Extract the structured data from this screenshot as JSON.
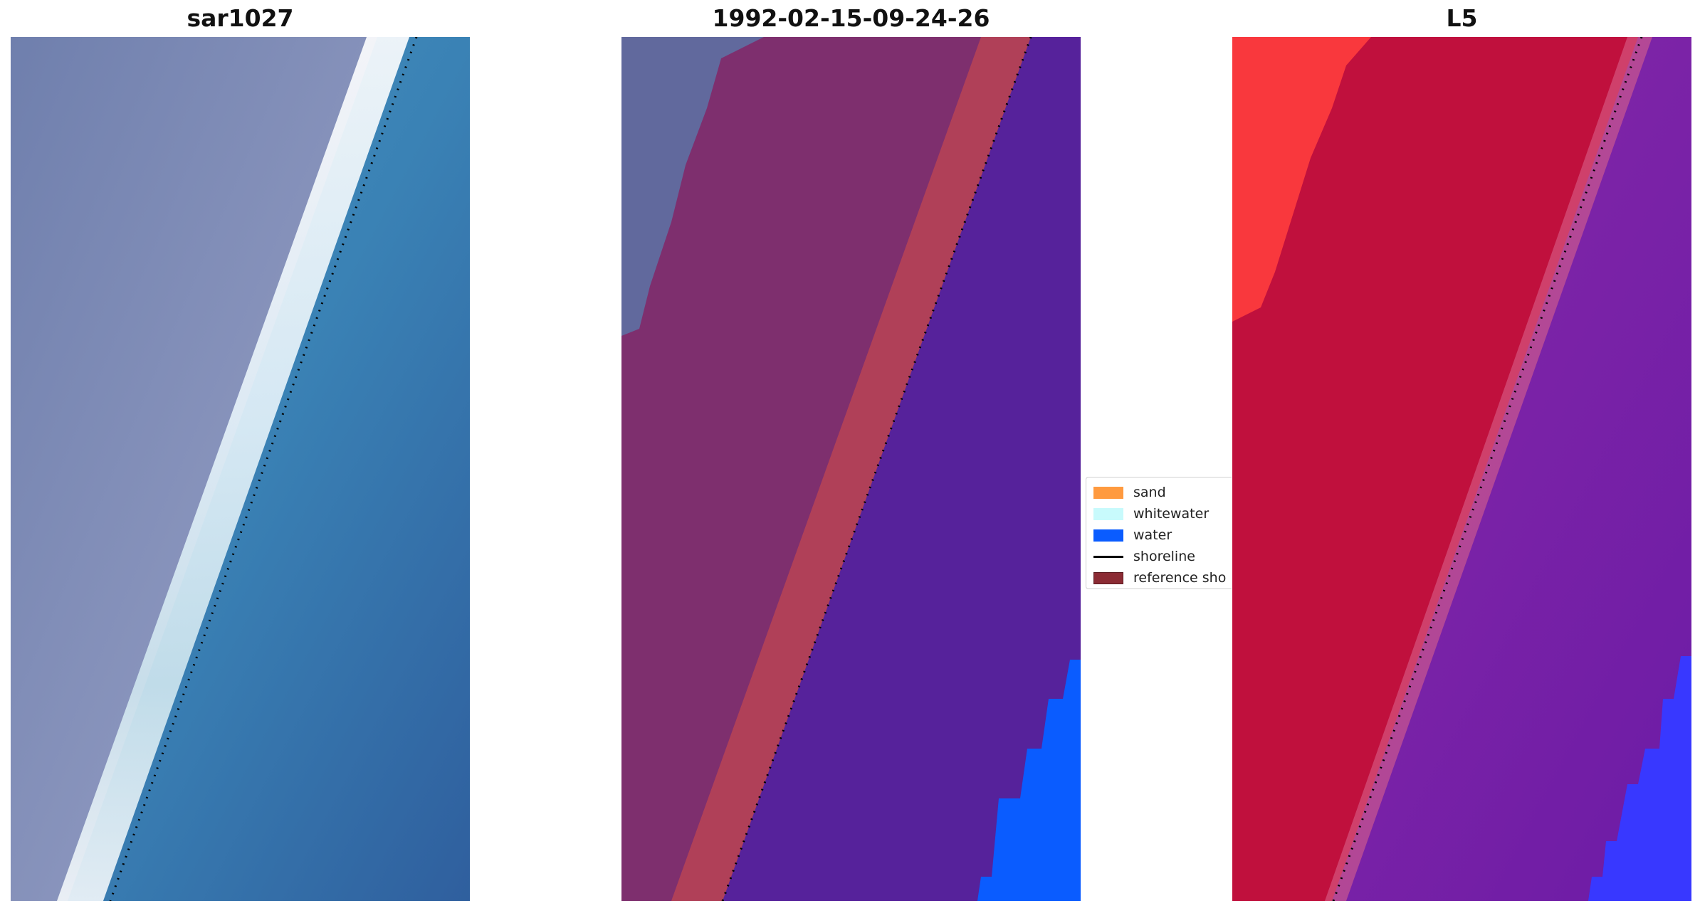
{
  "panels": [
    {
      "id": "sar",
      "title": "sar1027"
    },
    {
      "id": "classified",
      "title": "1992-02-15-09-24-26"
    },
    {
      "id": "l5",
      "title": "L5"
    }
  ],
  "legend": {
    "items": [
      {
        "label": "sand",
        "color": "#ff9a3f",
        "kind": "patch"
      },
      {
        "label": "whitewater",
        "color": "#c8fafc",
        "kind": "patch"
      },
      {
        "label": "water",
        "color": "#0a5cff",
        "kind": "patch"
      },
      {
        "label": "shoreline",
        "color": "#000000",
        "kind": "line"
      },
      {
        "label": "reference sho",
        "color": "#8b2b34",
        "kind": "patch"
      }
    ]
  },
  "colors": {
    "sar_land": "#7e8bb5",
    "sar_surf": "#eef6fb",
    "sar_sea": "#3b7db3",
    "class_land": "#7e2f6e",
    "class_reference": "#b84355",
    "class_water_overlay": "#56229b",
    "class_water": "#0a5cff",
    "l5_land": "#c0103d",
    "l5_bright_land": "#ff3d3d",
    "l5_sea": "#6e1ba8",
    "l5_water": "#3838ff",
    "shoreline_dots": "#000000"
  }
}
